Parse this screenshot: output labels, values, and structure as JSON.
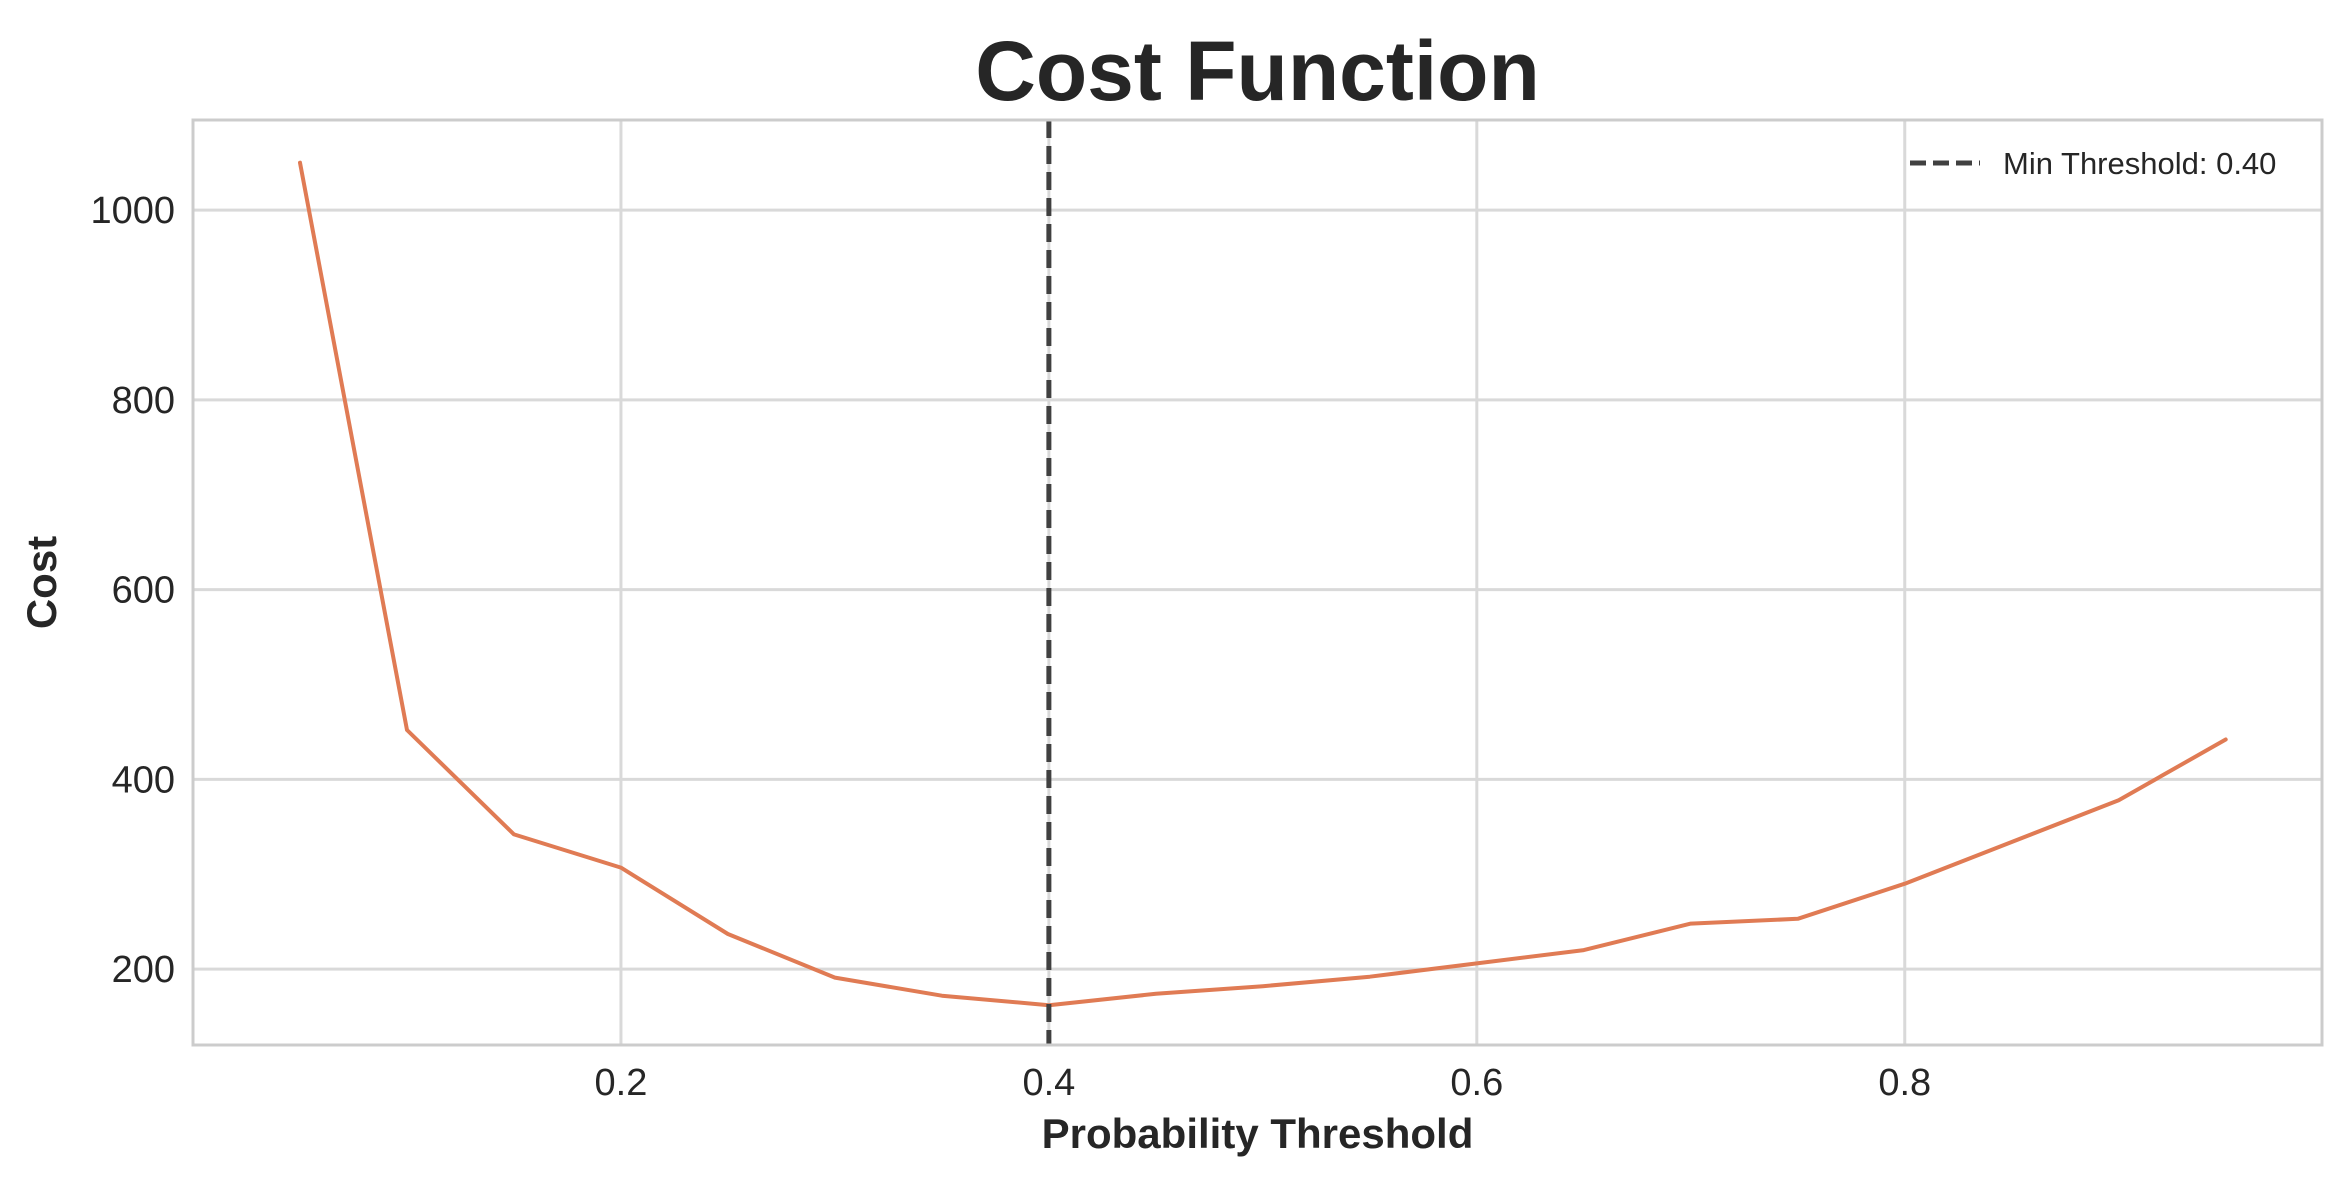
{
  "chart_data": {
    "type": "line",
    "title": "Cost Function",
    "xlabel": "Probability Threshold",
    "ylabel": "Cost",
    "xlim": [
      0.0,
      0.995
    ],
    "ylim": [
      120,
      1095
    ],
    "xticks": [
      0.2,
      0.4,
      0.6,
      0.8
    ],
    "xtick_labels": [
      "0.2",
      "0.4",
      "0.6",
      "0.8"
    ],
    "yticks": [
      200,
      400,
      600,
      800,
      1000
    ],
    "ytick_labels": [
      "200",
      "400",
      "600",
      "800",
      "1000"
    ],
    "grid": true,
    "legend_position": "top-right",
    "series": [
      {
        "x": [
          0.05,
          0.1,
          0.15,
          0.2,
          0.25,
          0.3,
          0.35,
          0.4,
          0.45,
          0.5,
          0.55,
          0.6,
          0.65,
          0.7,
          0.75,
          0.8,
          0.85,
          0.9,
          0.95
        ],
        "y": [
          1050,
          452,
          342,
          307,
          237,
          191,
          172,
          162,
          174,
          182,
          192,
          206,
          220,
          248,
          253,
          290,
          334,
          378,
          442
        ],
        "color": "#e07b54"
      }
    ],
    "vline": {
      "x": 0.4,
      "label": "Min Threshold: 0.40",
      "color": "#404040",
      "style": "dashed"
    }
  }
}
